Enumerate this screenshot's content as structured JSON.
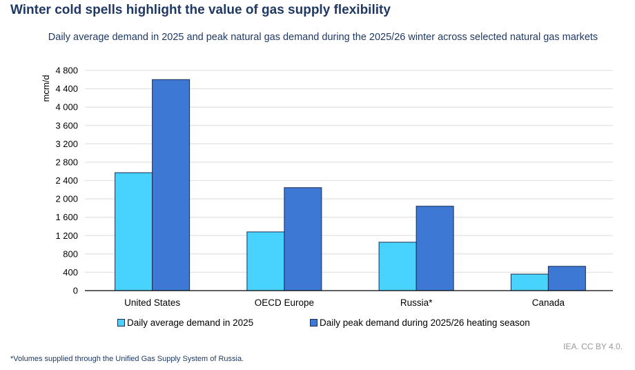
{
  "title": "Winter cold spells highlight the value of gas supply flexibility",
  "credit": "IEA. CC BY 4.0.",
  "footnote": "*Volumes supplied through the Unified Gas Supply System of Russia.",
  "chart_data": {
    "type": "bar",
    "title": "Daily average demand in 2025 and peak natural gas demand during the 2025/26 winter across selected natural gas markets",
    "ylabel": "mcm/d",
    "xlabel": "",
    "ylim": [
      0,
      4800
    ],
    "yticks": [
      "0",
      "400",
      "800",
      "1 200",
      "1 600",
      "2 000",
      "2 400",
      "2 800",
      "3 200",
      "3 600",
      "4 000",
      "4 400",
      "4 800"
    ],
    "ytick_values": [
      0,
      400,
      800,
      1200,
      1600,
      2000,
      2400,
      2800,
      3200,
      3600,
      4000,
      4400,
      4800
    ],
    "grid": true,
    "legend_position": "bottom",
    "categories": [
      "United States",
      "OECD Europe",
      "Russia*",
      "Canada"
    ],
    "series": [
      {
        "name": "Daily average demand in 2025",
        "color": "#47d3fd",
        "values": [
          2570,
          1280,
          1055,
          360
        ]
      },
      {
        "name": "Daily peak demand during 2025/26 heating season",
        "color": "#3c78d4",
        "values": [
          4600,
          2245,
          1840,
          530
        ]
      }
    ]
  }
}
